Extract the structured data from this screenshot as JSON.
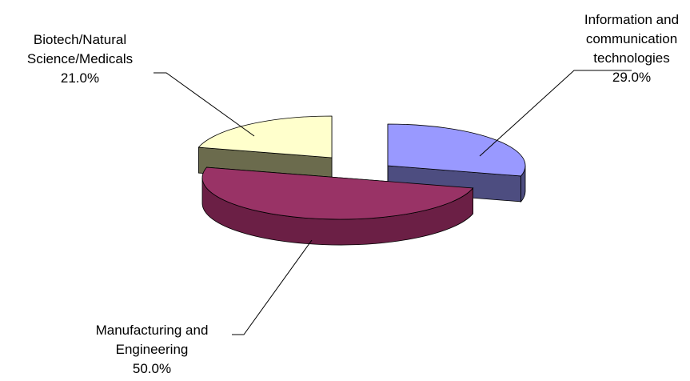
{
  "chart_data": {
    "type": "pie",
    "title": "",
    "slices": [
      {
        "label_lines": [
          "Information and",
          "communication",
          "technologies"
        ],
        "pct_text": "29.0%",
        "value": 29.0,
        "color": "#9999ff",
        "side_color": "#4d4d80"
      },
      {
        "label_lines": [
          "Manufacturing and",
          "Engineering"
        ],
        "pct_text": "50.0%",
        "value": 50.0,
        "color": "#993366",
        "side_color": "#6b1f45"
      },
      {
        "label_lines": [
          "Biotech/Natural",
          "Science/Medicals"
        ],
        "pct_text": "21.0%",
        "value": 21.0,
        "color": "#ffffcc",
        "side_color": "#6b6b4d"
      }
    ]
  }
}
